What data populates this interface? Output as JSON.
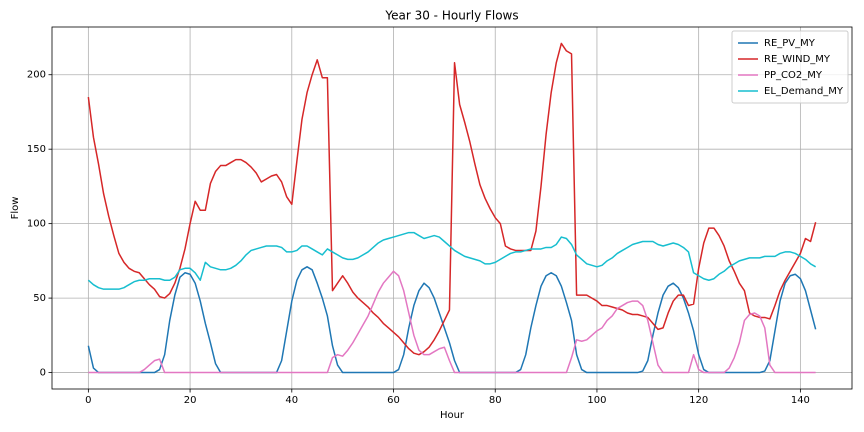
{
  "chart_data": {
    "type": "line",
    "title": "Year 30 - Hourly Flows",
    "xlabel": "Hour",
    "ylabel": "Flow",
    "x": [
      0,
      1,
      2,
      3,
      4,
      5,
      6,
      7,
      8,
      9,
      10,
      11,
      12,
      13,
      14,
      15,
      16,
      17,
      18,
      19,
      20,
      21,
      22,
      23,
      24,
      25,
      26,
      27,
      28,
      29,
      30,
      31,
      32,
      33,
      34,
      35,
      36,
      37,
      38,
      39,
      40,
      41,
      42,
      43,
      44,
      45,
      46,
      47,
      48,
      49,
      50,
      51,
      52,
      53,
      54,
      55,
      56,
      57,
      58,
      59,
      60,
      61,
      62,
      63,
      64,
      65,
      66,
      67,
      68,
      69,
      70,
      71,
      72,
      73,
      74,
      75,
      76,
      77,
      78,
      79,
      80,
      81,
      82,
      83,
      84,
      85,
      86,
      87,
      88,
      89,
      90,
      91,
      92,
      93,
      94,
      95,
      96,
      97,
      98,
      99,
      100,
      101,
      102,
      103,
      104,
      105,
      106,
      107,
      108,
      109,
      110,
      111,
      112,
      113,
      114,
      115,
      116,
      117,
      118,
      119,
      120,
      121,
      122,
      123,
      124,
      125,
      126,
      127,
      128,
      129,
      130,
      131,
      132,
      133,
      134,
      135,
      136,
      137,
      138,
      139,
      140,
      141,
      142,
      143
    ],
    "series": [
      {
        "name": "RE_PV_MY",
        "color": "#1f77b4",
        "values": [
          18,
          3,
          0,
          0,
          0,
          0,
          0,
          0,
          0,
          0,
          0,
          0,
          0,
          0,
          2,
          12,
          35,
          52,
          64,
          67,
          66,
          60,
          48,
          33,
          20,
          6,
          0,
          0,
          0,
          0,
          0,
          0,
          0,
          0,
          0,
          0,
          0,
          0,
          8,
          28,
          48,
          62,
          69,
          71,
          69,
          60,
          50,
          38,
          18,
          5,
          0,
          0,
          0,
          0,
          0,
          0,
          0,
          0,
          0,
          0,
          0,
          2,
          12,
          30,
          45,
          55,
          60,
          57,
          50,
          40,
          30,
          20,
          8,
          0,
          0,
          0,
          0,
          0,
          0,
          0,
          0,
          0,
          0,
          0,
          0,
          2,
          12,
          30,
          45,
          58,
          65,
          67,
          65,
          58,
          47,
          35,
          12,
          2,
          0,
          0,
          0,
          0,
          0,
          0,
          0,
          0,
          0,
          0,
          0,
          1,
          8,
          25,
          40,
          52,
          58,
          60,
          57,
          50,
          40,
          28,
          12,
          2,
          0,
          0,
          0,
          0,
          0,
          0,
          0,
          0,
          0,
          0,
          0,
          1,
          8,
          28,
          48,
          60,
          65,
          66,
          63,
          55,
          42,
          29
        ]
      },
      {
        "name": "RE_WIND_MY",
        "color": "#d62728",
        "values": [
          185,
          158,
          140,
          120,
          105,
          92,
          80,
          74,
          70,
          68,
          67,
          63,
          59,
          56,
          51,
          50,
          53,
          60,
          70,
          83,
          100,
          115,
          109,
          109,
          127,
          135,
          139,
          139,
          141,
          143,
          143,
          141,
          138,
          134,
          128,
          130,
          132,
          133,
          128,
          118,
          113,
          142,
          170,
          188,
          200,
          210,
          198,
          198,
          55,
          60,
          65,
          60,
          54,
          50,
          47,
          44,
          40,
          37,
          33,
          30,
          27,
          24,
          20,
          16,
          13,
          12,
          14,
          17,
          22,
          28,
          35,
          42,
          208,
          180,
          168,
          155,
          140,
          126,
          117,
          110,
          104,
          100,
          85,
          83,
          82,
          82,
          82,
          82,
          95,
          125,
          160,
          188,
          208,
          221,
          216,
          214,
          52,
          52,
          52,
          50,
          48,
          45,
          45,
          44,
          43,
          42,
          40,
          39,
          39,
          38,
          37,
          33,
          29,
          30,
          40,
          48,
          52,
          52,
          45,
          46,
          70,
          87,
          97,
          97,
          92,
          85,
          75,
          68,
          60,
          55,
          40,
          38,
          37,
          37,
          36,
          45,
          55,
          62,
          68,
          74,
          80,
          90,
          88,
          101
        ]
      },
      {
        "name": "PP_CO2_MY",
        "color": "#e377c2",
        "values": [
          0,
          0,
          0,
          0,
          0,
          0,
          0,
          0,
          0,
          0,
          0,
          2,
          5,
          8,
          9,
          0,
          0,
          0,
          0,
          0,
          0,
          0,
          0,
          0,
          0,
          0,
          0,
          0,
          0,
          0,
          0,
          0,
          0,
          0,
          0,
          0,
          0,
          0,
          0,
          0,
          0,
          0,
          0,
          0,
          0,
          0,
          0,
          0,
          10,
          12,
          11,
          15,
          20,
          26,
          32,
          38,
          46,
          54,
          60,
          64,
          68,
          65,
          55,
          40,
          25,
          15,
          12,
          12,
          14,
          16,
          17,
          8,
          0,
          0,
          0,
          0,
          0,
          0,
          0,
          0,
          0,
          0,
          0,
          0,
          0,
          0,
          0,
          0,
          0,
          0,
          0,
          0,
          0,
          0,
          0,
          10,
          22,
          21,
          22,
          25,
          28,
          30,
          35,
          38,
          43,
          45,
          47,
          48,
          48,
          45,
          35,
          20,
          5,
          0,
          0,
          0,
          0,
          0,
          0,
          12,
          2,
          0,
          0,
          0,
          0,
          0,
          3,
          10,
          20,
          35,
          39,
          40,
          38,
          30,
          5,
          0,
          0,
          0,
          0,
          0,
          0,
          0,
          0,
          0
        ]
      },
      {
        "name": "EL_Demand_MY",
        "color": "#17becf",
        "values": [
          62,
          59,
          57,
          56,
          56,
          56,
          56,
          57,
          59,
          61,
          62,
          62,
          63,
          63,
          63,
          62,
          62,
          64,
          69,
          70,
          70,
          67,
          62,
          74,
          71,
          70,
          69,
          69,
          70,
          72,
          75,
          79,
          82,
          83,
          84,
          85,
          85,
          85,
          84,
          81,
          81,
          82,
          85,
          85,
          83,
          81,
          79,
          83,
          81,
          79,
          77,
          76,
          76,
          77,
          79,
          81,
          84,
          87,
          89,
          90,
          91,
          92,
          93,
          94,
          94,
          92,
          90,
          91,
          92,
          91,
          88,
          85,
          82,
          80,
          78,
          77,
          76,
          75,
          73,
          73,
          74,
          76,
          78,
          80,
          81,
          81,
          82,
          83,
          83,
          83,
          84,
          84,
          86,
          91,
          90,
          86,
          79,
          76,
          73,
          72,
          71,
          72,
          75,
          77,
          80,
          82,
          84,
          86,
          87,
          88,
          88,
          88,
          86,
          85,
          86,
          87,
          86,
          84,
          81,
          67,
          65,
          63,
          62,
          63,
          66,
          68,
          71,
          73,
          75,
          76,
          77,
          77,
          77,
          78,
          78,
          78,
          80,
          81,
          81,
          80,
          78,
          76,
          73,
          71
        ]
      }
    ],
    "xlim": [
      -7.15,
      150.15
    ],
    "ylim": [
      -11.05,
      232.05
    ],
    "xticks": [
      0,
      20,
      40,
      60,
      80,
      100,
      120,
      140
    ],
    "yticks": [
      0,
      50,
      100,
      150,
      200
    ],
    "grid": true,
    "legend": "upper right"
  }
}
